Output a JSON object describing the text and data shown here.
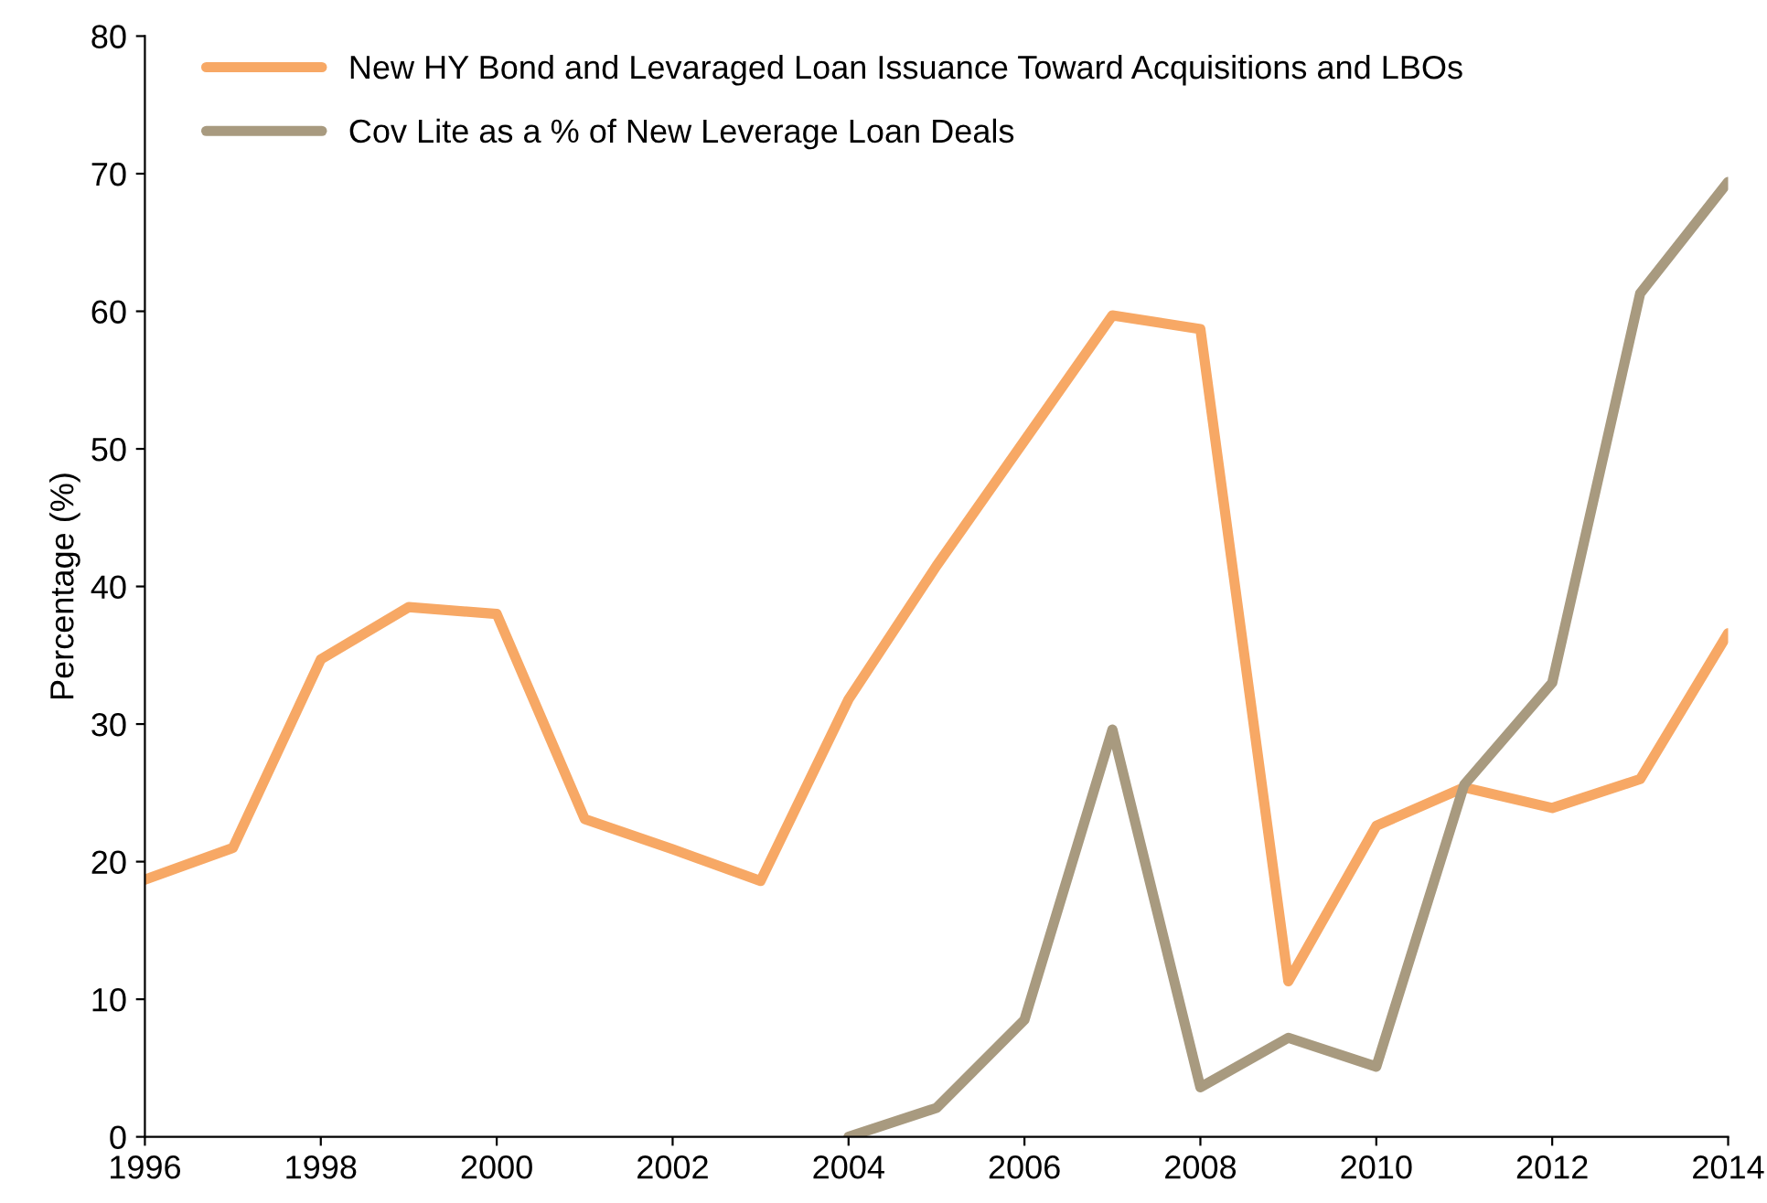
{
  "chart_data": {
    "type": "line",
    "ylabel": "Percentage (%)",
    "x": [
      1996,
      1997,
      1998,
      1999,
      2000,
      2001,
      2002,
      2003,
      2004,
      2005,
      2006,
      2007,
      2008,
      2009,
      2010,
      2011,
      2012,
      2013,
      2014
    ],
    "series": [
      {
        "name": "New HY Bond and Levaraged Loan Issuance Toward Acquisitions and LBOs",
        "color": "#f7a865",
        "values": [
          18.7,
          21,
          34.7,
          38.5,
          38,
          23.1,
          20.9,
          18.6,
          31.8,
          41.5,
          50.6,
          59.7,
          58.7,
          11.3,
          22.6,
          25.4,
          23.9,
          26,
          36.6
        ]
      },
      {
        "name": "Cov Lite as a % of New Leverage Loan Deals",
        "color": "#a89a7f",
        "values": [
          null,
          null,
          null,
          null,
          null,
          null,
          null,
          null,
          0,
          2.1,
          8.5,
          29.6,
          3.6,
          7.2,
          5.1,
          25.6,
          33,
          61.3,
          69.4
        ]
      }
    ],
    "xlim": [
      1996,
      2014
    ],
    "xticks": [
      1996,
      1998,
      2000,
      2002,
      2004,
      2006,
      2008,
      2010,
      2012,
      2014
    ],
    "ylim": [
      0,
      80
    ],
    "yticks": [
      0,
      10,
      20,
      30,
      40,
      50,
      60,
      70,
      80
    ],
    "grid": false,
    "legend": "top left",
    "marker": "none",
    "line_style": "solid"
  }
}
